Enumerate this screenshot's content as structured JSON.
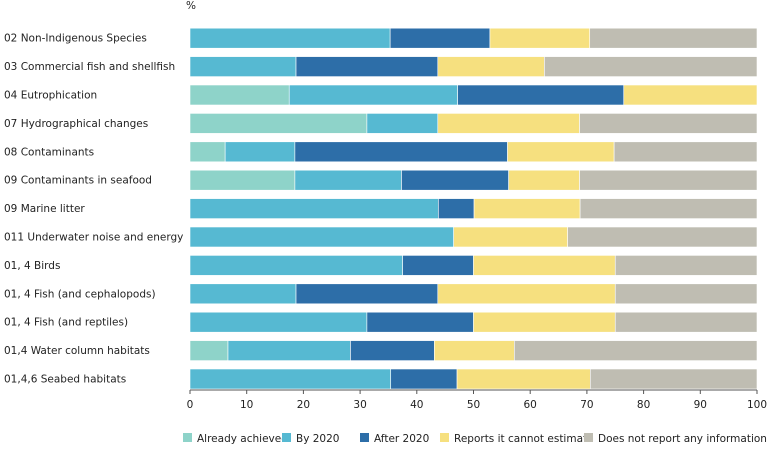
{
  "chart_data": {
    "type": "bar",
    "orientation": "horizontal",
    "stacked": true,
    "unit_label": "%",
    "xlim": [
      0,
      100
    ],
    "x_ticks": [
      0,
      10,
      20,
      30,
      40,
      50,
      60,
      70,
      80,
      90,
      100
    ],
    "grid": false,
    "legend_position": "bottom",
    "categories": [
      "02 Non-Indigenous Species",
      "03 Commercial fish and shellfish",
      "04 Eutrophication",
      "07 Hydrographical changes",
      "08 Contaminants",
      "09 Contaminants in seafood",
      "09 Marine litter",
      "011 Underwater noise and energy",
      "01, 4 Birds",
      "01, 4 Fish (and cephalopods)",
      "01, 4 Fish (and reptiles)",
      "01,4 Water column habitats",
      "01,4,6 Seabed habitats"
    ],
    "series": [
      {
        "name": "Already achieved",
        "color": "#8ed3c9",
        "values": [
          0,
          0,
          17.5,
          31.2,
          6.2,
          18.5,
          0,
          0,
          0,
          0,
          0,
          6.7,
          0
        ]
      },
      {
        "name": "By 2020",
        "color": "#56b9d2",
        "values": [
          35.3,
          18.7,
          29.7,
          12.5,
          12.3,
          18.8,
          43.8,
          46.5,
          37.5,
          18.7,
          31.2,
          21.6,
          35.4
        ]
      },
      {
        "name": "After 2020",
        "color": "#2d6ea8",
        "values": [
          17.6,
          25.0,
          29.3,
          0,
          37.5,
          18.9,
          6.3,
          0,
          12.5,
          25.0,
          18.8,
          14.8,
          11.7
        ]
      },
      {
        "name": "Reports it cannot estimate",
        "color": "#f6e07f",
        "values": [
          17.6,
          18.8,
          23.5,
          25.0,
          18.8,
          12.5,
          18.7,
          20.1,
          25.0,
          31.3,
          25.0,
          14.1,
          23.5
        ]
      },
      {
        "name": "Does not report any information",
        "color": "#bfbdb2",
        "values": [
          29.5,
          37.5,
          0,
          31.3,
          25.2,
          31.3,
          31.2,
          33.4,
          25.0,
          25.0,
          25.0,
          42.8,
          29.4
        ]
      }
    ]
  }
}
